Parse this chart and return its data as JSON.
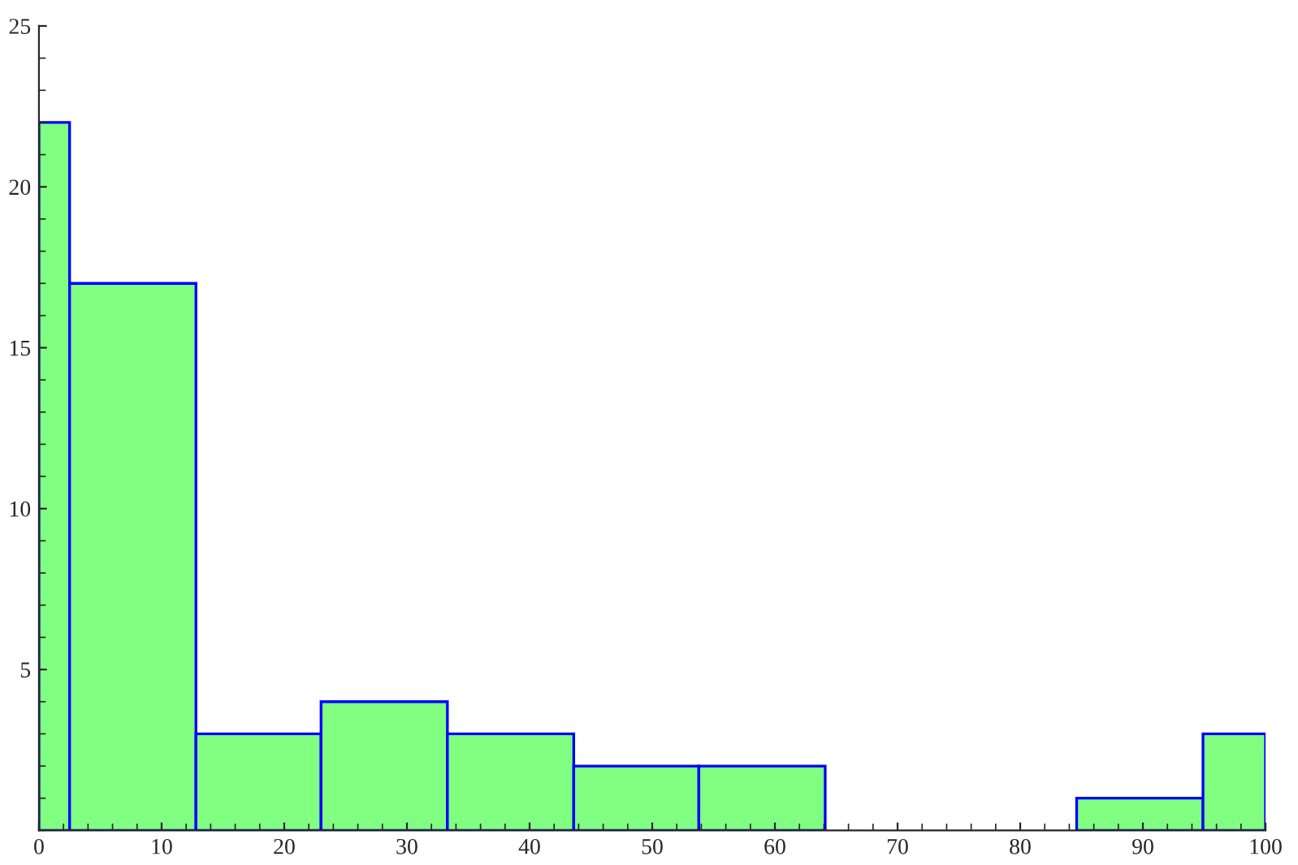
{
  "chart_data": {
    "type": "histogram",
    "bins": [
      0,
      2.5,
      12.8,
      23.0,
      33.3,
      43.6,
      53.8,
      64.1,
      84.6,
      94.9,
      100
    ],
    "values": [
      22,
      17,
      3,
      4,
      3,
      2,
      2,
      0,
      1,
      3
    ],
    "color": "#80ff80",
    "xlim": [
      0,
      100
    ],
    "ylim": [
      0,
      25
    ],
    "xticks": [
      0,
      10,
      20,
      30,
      40,
      50,
      60,
      70,
      80,
      90,
      100
    ],
    "yticks": [
      5,
      10,
      15,
      20,
      25
    ],
    "grid": false
  }
}
